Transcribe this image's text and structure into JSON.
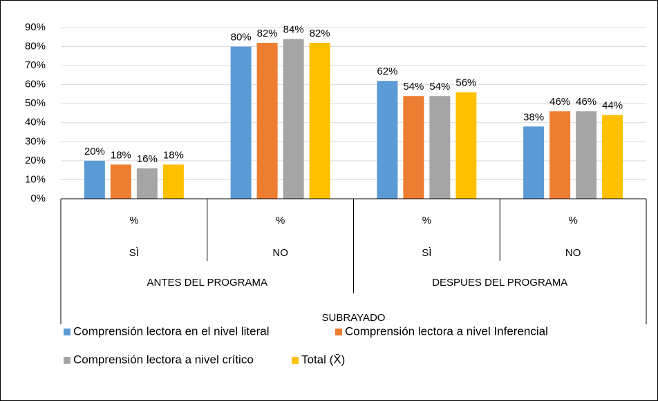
{
  "chart_data": {
    "type": "bar",
    "categories": [
      "%",
      "%",
      "%",
      "%"
    ],
    "category_levels": [
      [
        "SÌ",
        "NO",
        "SÌ",
        "NO"
      ],
      [
        "ANTES DEL PROGRAMA",
        "DESPUES DEL PROGRAMA"
      ],
      [
        "SUBRAYADO"
      ]
    ],
    "series": [
      {
        "name": "Comprensión lectora en el nivel literal",
        "color": "#5b9bd5",
        "values": [
          20,
          80,
          62,
          38
        ],
        "value_labels": [
          "20%",
          "80%",
          "62%",
          "38%"
        ]
      },
      {
        "name": "Comprensión lectora a nivel Inferencial",
        "color": "#ed7d31",
        "values": [
          18,
          82,
          54,
          46
        ],
        "value_labels": [
          "18%",
          "82%",
          "54%",
          "46%"
        ]
      },
      {
        "name": "Comprensión lectora a nivel crítico",
        "color": "#a5a5a5",
        "values": [
          16,
          84,
          54,
          46
        ],
        "value_labels": [
          "16%",
          "84%",
          "54%",
          "46%"
        ]
      },
      {
        "name": "Total (X̄)",
        "color": "#ffc000",
        "values": [
          18,
          82,
          56,
          44
        ],
        "value_labels": [
          "18%",
          "82%",
          "56%",
          "44%"
        ]
      }
    ],
    "ylim": [
      0,
      90
    ],
    "yticks": [
      {
        "value": 0,
        "label": "0%"
      },
      {
        "value": 10,
        "label": "10%"
      },
      {
        "value": 20,
        "label": "20%"
      },
      {
        "value": 30,
        "label": "30%"
      },
      {
        "value": 40,
        "label": "40%"
      },
      {
        "value": 50,
        "label": "50%"
      },
      {
        "value": 60,
        "label": "60%"
      },
      {
        "value": 70,
        "label": "70%"
      },
      {
        "value": 80,
        "label": "80%"
      },
      {
        "value": 90,
        "label": "90%"
      }
    ],
    "grid": true
  }
}
